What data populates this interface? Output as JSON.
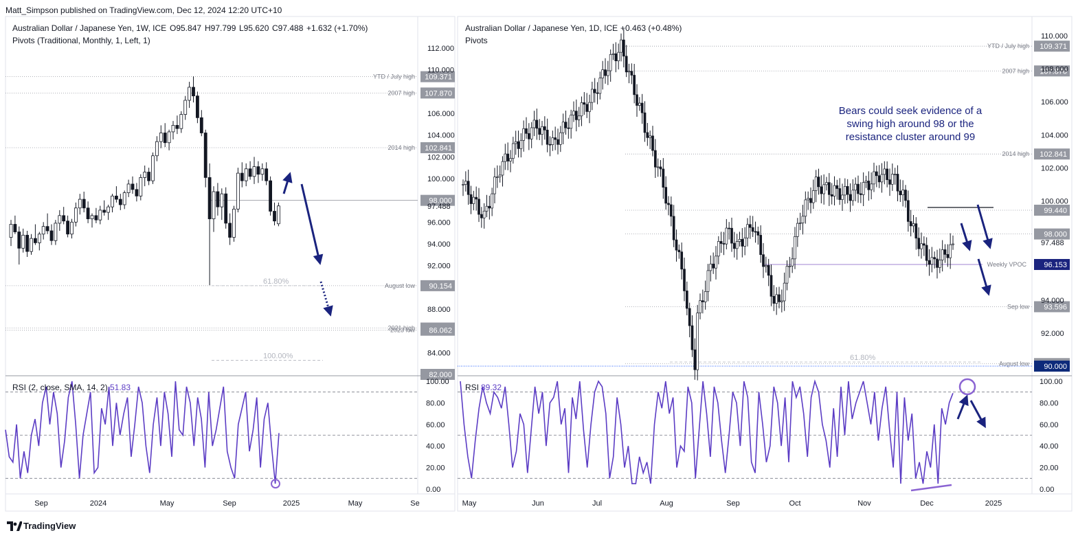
{
  "header": {
    "published": "Matt_Simpson published on TradingView.com, Dec 12, 2024 12:20 UTC+10"
  },
  "footer": {
    "brand": "TradingView"
  },
  "chart_data": [
    {
      "type": "candlestick",
      "title": "Australian Dollar / Japanese Yen, 1W, ICE",
      "ohlc_header": {
        "open": "O95.847",
        "high": "H97.799",
        "low": "L95.620",
        "close": "C97.488",
        "change": "+1.632 (+1.70%)"
      },
      "indicator": "Pivots (Traditional, Monthly, 1, Left, 1)",
      "y_ticks": [
        "112.000",
        "110.000",
        "106.000",
        "104.000",
        "102.000",
        "100.000",
        "97.488",
        "96.000",
        "94.000",
        "92.000",
        "88.000",
        "84.000"
      ],
      "ylim": [
        82,
        112
      ],
      "x_ticks": [
        "Sep",
        "2024",
        "May",
        "Sep",
        "2025",
        "May",
        "Se"
      ],
      "levels": [
        {
          "label": "YTD / July high",
          "value": "109.371",
          "style": "dotted"
        },
        {
          "label": "2007 high",
          "value": "107.870",
          "style": "dotted"
        },
        {
          "label": "2014 high",
          "value": "102.841",
          "style": "dotted"
        },
        {
          "label": "",
          "value": "98.000",
          "style": "solid"
        },
        {
          "label": "August low",
          "value": "90.154",
          "style": "dotted"
        },
        {
          "label": "2021 high",
          "value": "86.261",
          "style": "dotted"
        },
        {
          "label": "2023 low",
          "value": "86.062",
          "style": "dotted"
        },
        {
          "label": "",
          "value": "82.000",
          "style": "none"
        }
      ],
      "fib_levels": [
        {
          "label": "61.80%",
          "value": 90.154
        },
        {
          "label": "100.00%",
          "value": 83.3
        }
      ],
      "candles": [
        [
          94.6,
          96.2,
          93.8,
          95.8
        ],
        [
          95.8,
          96.6,
          94.9,
          95.1
        ],
        [
          95.1,
          95.6,
          92.1,
          93.6
        ],
        [
          93.6,
          95.4,
          93.2,
          94.8
        ],
        [
          94.8,
          95.2,
          92.8,
          93.3
        ],
        [
          93.3,
          94.9,
          93.0,
          94.5
        ],
        [
          94.5,
          95.8,
          93.9,
          94.1
        ],
        [
          94.1,
          95.1,
          93.4,
          94.9
        ],
        [
          94.9,
          96.0,
          94.4,
          95.6
        ],
        [
          95.6,
          96.8,
          94.9,
          95.2
        ],
        [
          95.2,
          95.8,
          93.9,
          94.3
        ],
        [
          94.3,
          96.2,
          93.9,
          95.9
        ],
        [
          95.9,
          97.1,
          95.2,
          96.6
        ],
        [
          96.6,
          97.4,
          95.8,
          96.1
        ],
        [
          96.1,
          96.6,
          94.6,
          94.9
        ],
        [
          94.9,
          96.3,
          94.5,
          96.0
        ],
        [
          96.0,
          97.8,
          95.6,
          97.3
        ],
        [
          97.3,
          98.6,
          96.7,
          98.1
        ],
        [
          98.1,
          98.8,
          96.9,
          97.3
        ],
        [
          97.3,
          97.9,
          95.9,
          96.3
        ],
        [
          96.3,
          96.8,
          95.5,
          96.6
        ],
        [
          96.6,
          97.3,
          95.9,
          96.2
        ],
        [
          96.2,
          97.5,
          95.8,
          97.1
        ],
        [
          97.1,
          98.0,
          96.6,
          96.9
        ],
        [
          96.9,
          97.6,
          96.2,
          97.4
        ],
        [
          97.4,
          98.6,
          96.9,
          98.4
        ],
        [
          98.4,
          99.3,
          97.8,
          98.1
        ],
        [
          98.1,
          98.6,
          97.1,
          97.6
        ],
        [
          97.6,
          98.9,
          97.2,
          98.7
        ],
        [
          98.7,
          99.9,
          98.3,
          99.5
        ],
        [
          99.5,
          100.2,
          98.6,
          99.0
        ],
        [
          99.0,
          99.6,
          97.9,
          98.4
        ],
        [
          98.4,
          100.4,
          98.0,
          100.1
        ],
        [
          100.1,
          101.2,
          99.3,
          100.6
        ],
        [
          100.6,
          101.0,
          99.4,
          99.8
        ],
        [
          99.8,
          102.4,
          99.5,
          102.1
        ],
        [
          102.1,
          103.9,
          101.6,
          103.4
        ],
        [
          103.4,
          104.9,
          102.8,
          104.2
        ],
        [
          104.2,
          105.1,
          102.9,
          103.3
        ],
        [
          103.3,
          104.5,
          102.6,
          104.3
        ],
        [
          104.3,
          105.3,
          103.6,
          104.9
        ],
        [
          104.9,
          105.8,
          104.1,
          104.6
        ],
        [
          104.6,
          106.2,
          104.2,
          105.9
        ],
        [
          105.9,
          107.6,
          105.4,
          107.2
        ],
        [
          107.2,
          108.9,
          106.5,
          108.4
        ],
        [
          108.4,
          109.4,
          107.0,
          107.6
        ],
        [
          107.6,
          108.0,
          105.1,
          105.6
        ],
        [
          105.6,
          106.3,
          103.9,
          104.2
        ],
        [
          104.2,
          104.5,
          99.2,
          100.1
        ],
        [
          100.1,
          101.4,
          90.2,
          96.3
        ],
        [
          96.3,
          99.3,
          95.1,
          98.8
        ],
        [
          98.8,
          99.6,
          96.6,
          97.4
        ],
        [
          97.4,
          99.1,
          96.2,
          98.6
        ],
        [
          98.6,
          99.2,
          95.4,
          95.9
        ],
        [
          95.9,
          96.8,
          93.9,
          94.6
        ],
        [
          94.6,
          97.5,
          94.2,
          97.2
        ],
        [
          97.2,
          101.0,
          96.9,
          100.5
        ],
        [
          100.5,
          101.5,
          99.2,
          99.8
        ],
        [
          99.8,
          101.4,
          99.3,
          100.9
        ],
        [
          100.9,
          101.6,
          99.9,
          100.2
        ],
        [
          100.2,
          102.0,
          99.5,
          101.1
        ],
        [
          101.1,
          101.6,
          99.6,
          100.4
        ],
        [
          100.4,
          101.4,
          99.8,
          100.9
        ],
        [
          100.9,
          101.5,
          99.4,
          99.8
        ],
        [
          99.8,
          100.2,
          96.6,
          97.0
        ],
        [
          97.0,
          97.8,
          95.7,
          96.1
        ],
        [
          95.847,
          97.799,
          95.62,
          97.488
        ]
      ],
      "rsi": {
        "label": "RSI (2, close, SMA, 14, 2)",
        "value": "51.83",
        "ticks": [
          "100.00",
          "80.00",
          "60.00",
          "40.00",
          "20.00",
          "0.00"
        ],
        "levels": [
          90,
          50,
          10
        ],
        "values": [
          55,
          30,
          25,
          60,
          10,
          35,
          15,
          50,
          65,
          40,
          80,
          95,
          60,
          90,
          70,
          20,
          45,
          85,
          100,
          60,
          10,
          50,
          70,
          90,
          15,
          20,
          75,
          60,
          95,
          40,
          80,
          50,
          70,
          85,
          30,
          60,
          95,
          80,
          40,
          15,
          60,
          85,
          40,
          90,
          70,
          30,
          100,
          55,
          50,
          95,
          80,
          40,
          85,
          65,
          20,
          90,
          40,
          55,
          75,
          95,
          35,
          20,
          10,
          60,
          75,
          90,
          35,
          55,
          85,
          20,
          65,
          80,
          40,
          5,
          52
        ]
      }
    },
    {
      "type": "candlestick",
      "title": "Australian Dollar / Japanese Yen, 1D, ICE",
      "change": "+0.463 (+0.48%)",
      "indicator": "Pivots",
      "y_ticks": [
        "110.000",
        "108.000",
        "106.000",
        "104.000",
        "102.000",
        "100.000",
        "97.488",
        "94.000",
        "92.000"
      ],
      "ylim": [
        89.5,
        111
      ],
      "x_ticks": [
        "May",
        "Jun",
        "Jul",
        "Aug",
        "Sep",
        "Oct",
        "Nov",
        "Dec",
        "2025"
      ],
      "levels": [
        {
          "label": "YTD / July high",
          "value": "109.371",
          "style": "dotted"
        },
        {
          "label": "2007 high",
          "value": "107.870",
          "style": "dotted"
        },
        {
          "label": "2014 high",
          "value": "102.841",
          "style": "dotted"
        },
        {
          "label": "",
          "value": "99.440",
          "style": "dotted"
        },
        {
          "label": "",
          "value": "98.000",
          "style": "dotted"
        },
        {
          "label": "Weekly VPOC",
          "value": "96.153",
          "style": "solid-purple"
        },
        {
          "label": "Sep low",
          "value": "93.596",
          "style": "dotted"
        },
        {
          "label": "August low",
          "value": "90.154",
          "style": "dotted"
        },
        {
          "label": "",
          "value": "90.000",
          "style": "blue"
        }
      ],
      "fib_levels": [
        {
          "label": "61.80%",
          "value": 90.25
        }
      ],
      "annotation": "Bears could seek evidence of a swing high around 98 or the resistance cluster around 99",
      "rsi": {
        "label": "RSI",
        "value": "89.32",
        "ticks": [
          "100.00",
          "80.00",
          "60.00",
          "40.00",
          "20.00",
          "0.00"
        ],
        "levels": [
          90,
          50,
          10
        ],
        "values": [
          100,
          60,
          30,
          10,
          45,
          75,
          95,
          80,
          70,
          90,
          85,
          75,
          95,
          60,
          20,
          35,
          70,
          60,
          15,
          55,
          95,
          70,
          90,
          40,
          80,
          85,
          100,
          60,
          75,
          15,
          85,
          65,
          100,
          55,
          20,
          60,
          90,
          100,
          95,
          70,
          10,
          30,
          85,
          60,
          20,
          40,
          5,
          5,
          30,
          15,
          25,
          5,
          60,
          90,
          75,
          100,
          70,
          85,
          20,
          40,
          35,
          95,
          80,
          10,
          55,
          100,
          70,
          30,
          95,
          80,
          45,
          15,
          50,
          90,
          80,
          40,
          100,
          85,
          25,
          15,
          90,
          60,
          25,
          40,
          95,
          80,
          40,
          85,
          25,
          100,
          85,
          95,
          70,
          30,
          85,
          100,
          90,
          60,
          45,
          20,
          75,
          30,
          95,
          50,
          100,
          65,
          80,
          90,
          100,
          80,
          60,
          90,
          45,
          75,
          95,
          55,
          20,
          90,
          5,
          85,
          45,
          70,
          10,
          25,
          5,
          35,
          20,
          60,
          5,
          75,
          60,
          80,
          89
        ]
      }
    }
  ]
}
